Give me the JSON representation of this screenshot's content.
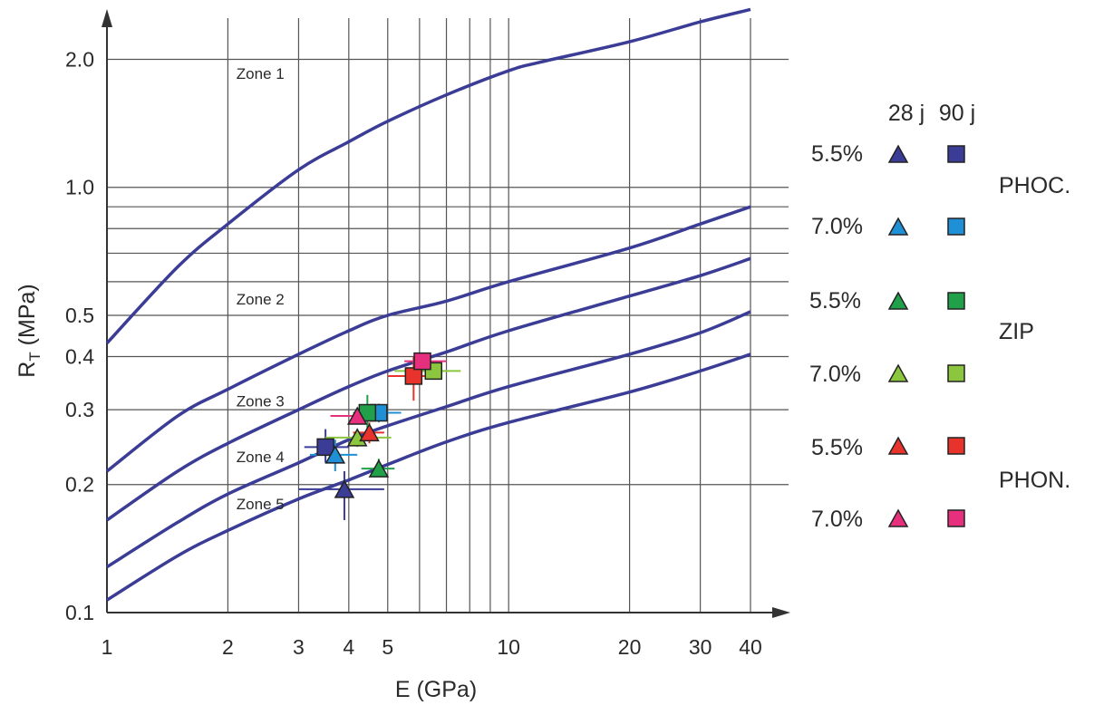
{
  "chart_data": {
    "type": "scatter",
    "xscale": "log",
    "yscale": "log",
    "xlabel": "E (GPa)",
    "ylabel_main": "R",
    "ylabel_sub": "T",
    "ylabel_tail": " (MPa)",
    "xlim": [
      1,
      40
    ],
    "ylim": [
      0.1,
      2.5
    ],
    "xticks": [
      1,
      2,
      3,
      4,
      5,
      10,
      20,
      30,
      40
    ],
    "xtick_labels": [
      "1",
      "2",
      "3",
      "4",
      "5",
      "10",
      "20",
      "30",
      "40"
    ],
    "xgrid": [
      2,
      3,
      4,
      5,
      6,
      7,
      8,
      9,
      10,
      20,
      30,
      40
    ],
    "yticks": [
      0.1,
      0.2,
      0.3,
      0.4,
      0.5,
      1.0,
      2.0
    ],
    "ytick_labels": [
      "0.1",
      "0.2",
      "0.3",
      "0.4",
      "0.5",
      "1.0",
      "2.0"
    ],
    "ygrid": [
      0.2,
      0.3,
      0.4,
      0.5,
      0.6,
      0.7,
      0.8,
      0.9,
      1.0,
      2.0
    ],
    "grid": true,
    "curve_color": "#3a3c96",
    "zone_labels": [
      {
        "text": "Zone 1",
        "x": 2.1,
        "y": 1.8
      },
      {
        "text": "Zone 2",
        "x": 2.1,
        "y": 0.53
      },
      {
        "text": "Zone 3",
        "x": 2.1,
        "y": 0.305
      },
      {
        "text": "Zone 4",
        "x": 2.1,
        "y": 0.226
      },
      {
        "text": "Zone 5",
        "x": 2.1,
        "y": 0.175
      }
    ],
    "boundary_curves": [
      {
        "x": [
          1,
          1.5,
          2,
          3,
          4,
          5,
          7,
          10,
          12,
          20,
          30,
          40
        ],
        "y": [
          0.43,
          0.65,
          0.82,
          1.1,
          1.28,
          1.43,
          1.65,
          1.88,
          1.97,
          2.2,
          2.45,
          2.62
        ]
      },
      {
        "x": [
          1,
          1.5,
          2,
          3,
          4,
          5,
          7,
          10,
          20,
          30,
          40
        ],
        "y": [
          0.215,
          0.29,
          0.335,
          0.405,
          0.46,
          0.5,
          0.54,
          0.6,
          0.72,
          0.82,
          0.9
        ]
      },
      {
        "x": [
          1,
          1.5,
          2,
          3,
          4,
          5,
          7,
          10,
          20,
          30,
          40
        ],
        "y": [
          0.165,
          0.215,
          0.25,
          0.3,
          0.34,
          0.37,
          0.41,
          0.46,
          0.555,
          0.62,
          0.68
        ]
      },
      {
        "x": [
          1,
          1.5,
          2,
          3,
          4,
          5,
          7,
          10,
          20,
          30,
          40
        ],
        "y": [
          0.128,
          0.163,
          0.19,
          0.225,
          0.255,
          0.275,
          0.305,
          0.34,
          0.405,
          0.455,
          0.51
        ]
      },
      {
        "x": [
          1,
          1.5,
          2,
          3,
          4,
          5,
          7,
          10,
          20,
          30,
          40
        ],
        "y": [
          0.107,
          0.136,
          0.156,
          0.185,
          0.205,
          0.223,
          0.252,
          0.28,
          0.33,
          0.37,
          0.405
        ]
      }
    ],
    "series": [
      {
        "material": "PHOC.",
        "binder": "5.5%",
        "age": "28 j",
        "marker": "triangle",
        "color": "#3a3c96",
        "x": 3.9,
        "y": 0.195,
        "xerr": [
          3.0,
          4.9
        ],
        "yerr": [
          0.165,
          0.215
        ]
      },
      {
        "material": "PHOC.",
        "binder": "5.5%",
        "age": "90 j",
        "marker": "square",
        "color": "#3a3c96",
        "x": 3.5,
        "y": 0.245,
        "xerr": [
          3.1,
          4.0
        ],
        "yerr": [
          0.225,
          0.27
        ]
      },
      {
        "material": "PHOC.",
        "binder": "7.0%",
        "age": "28 j",
        "marker": "triangle",
        "color": "#1f8fd6",
        "x": 3.7,
        "y": 0.235,
        "xerr": [
          3.2,
          4.2
        ],
        "yerr": [
          0.215,
          0.255
        ]
      },
      {
        "material": "PHOC.",
        "binder": "7.0%",
        "age": "90 j",
        "marker": "square",
        "color": "#1f8fd6",
        "x": 4.75,
        "y": 0.295,
        "xerr": [
          4.3,
          5.4
        ],
        "yerr": [
          0.28,
          0.31
        ]
      },
      {
        "material": "ZIP",
        "binder": "5.5%",
        "age": "28 j",
        "marker": "triangle",
        "color": "#21a04a",
        "x": 4.75,
        "y": 0.218,
        "xerr": [
          4.3,
          5.2
        ],
        "yerr": [
          0.21,
          0.23
        ]
      },
      {
        "material": "ZIP",
        "binder": "5.5%",
        "age": "90 j",
        "marker": "square",
        "color": "#21a04a",
        "x": 4.45,
        "y": 0.295,
        "xerr": [
          4.1,
          4.8
        ],
        "yerr": [
          0.27,
          0.325
        ]
      },
      {
        "material": "ZIP",
        "binder": "7.0%",
        "age": "28 j",
        "marker": "triangle",
        "color": "#8cc63e",
        "x": 4.2,
        "y": 0.258,
        "xerr": [
          3.5,
          5.1
        ],
        "yerr": [
          0.245,
          0.27
        ]
      },
      {
        "material": "ZIP",
        "binder": "7.0%",
        "age": "90 j",
        "marker": "square",
        "color": "#8cc63e",
        "x": 6.5,
        "y": 0.37,
        "xerr": [
          5.2,
          7.6
        ],
        "yerr": [
          0.355,
          0.385
        ]
      },
      {
        "material": "PHON.",
        "binder": "5.5%",
        "age": "28 j",
        "marker": "triangle",
        "color": "#e8332c",
        "x": 4.5,
        "y": 0.265,
        "xerr": [
          4.1,
          4.9
        ],
        "yerr": [
          0.25,
          0.28
        ]
      },
      {
        "material": "PHON.",
        "binder": "5.5%",
        "age": "90 j",
        "marker": "square",
        "color": "#e8332c",
        "x": 5.8,
        "y": 0.36,
        "xerr": [
          5.0,
          6.6
        ],
        "yerr": [
          0.315,
          0.4
        ]
      },
      {
        "material": "PHON.",
        "binder": "7.0%",
        "age": "28 j",
        "marker": "triangle",
        "color": "#e6307d",
        "x": 4.2,
        "y": 0.29,
        "xerr": [
          3.6,
          4.9
        ],
        "yerr": [
          0.28,
          0.3
        ]
      },
      {
        "material": "PHON.",
        "binder": "7.0%",
        "age": "90 j",
        "marker": "square",
        "color": "#e6307d",
        "x": 6.1,
        "y": 0.39,
        "xerr": [
          5.5,
          7.0
        ],
        "yerr": [
          0.375,
          0.405
        ]
      }
    ],
    "legend": {
      "headers": [
        "28 j",
        "90 j"
      ],
      "rows": [
        {
          "percent": "5.5%",
          "color": "#3a3c96"
        },
        {
          "percent": "7.0%",
          "color": "#1f8fd6"
        },
        {
          "percent": "5.5%",
          "color": "#21a04a"
        },
        {
          "percent": "7.0%",
          "color": "#8cc63e"
        },
        {
          "percent": "5.5%",
          "color": "#e8332c"
        },
        {
          "percent": "7.0%",
          "color": "#e6307d"
        }
      ],
      "groups": [
        "PHOC.",
        "ZIP",
        "PHON."
      ],
      "placement": "right"
    }
  }
}
